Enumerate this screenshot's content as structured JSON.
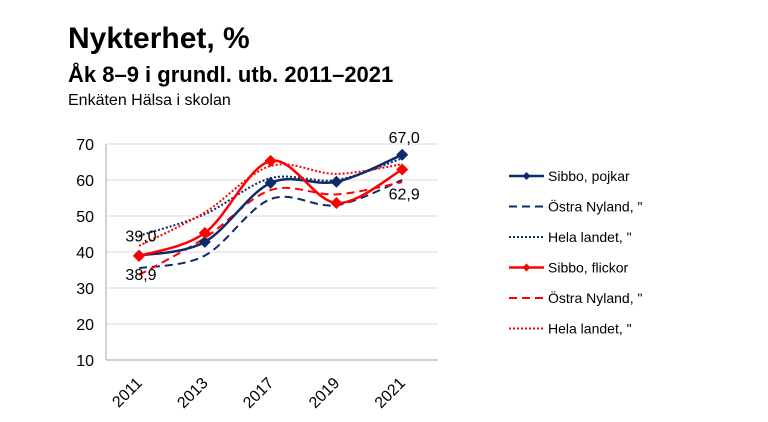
{
  "header": {
    "title": "Nykterhet, %",
    "subtitle": "Åk 8–9 i grundl. utb. 2011–2021",
    "source": "Enkäten Hälsa i skolan"
  },
  "chart_data": {
    "type": "line",
    "categories": [
      "2011",
      "2013",
      "2017",
      "2019",
      "2021"
    ],
    "ylim": [
      10,
      70
    ],
    "yticks": [
      "10",
      "20",
      "30",
      "40",
      "50",
      "60",
      "70"
    ],
    "grid": true,
    "legend_position": "right",
    "smoothed": true,
    "series": [
      {
        "name": "Sibbo, pojkar",
        "color": "#0d2a6b",
        "dash": "solid",
        "marker": "diamond",
        "values": [
          39.0,
          42.8,
          59.2,
          59.5,
          67.0
        ]
      },
      {
        "name": "Östra Nyland, \"",
        "color": "#0d2a6b",
        "dash": "dashed",
        "marker": "none",
        "values": [
          35.5,
          39.0,
          54.7,
          53.0,
          60.0
        ]
      },
      {
        "name": "Hela landet, \"",
        "color": "#0d2a6b",
        "dash": "dotted",
        "marker": "none",
        "values": [
          44.5,
          50.5,
          60.5,
          60.0,
          66.0
        ]
      },
      {
        "name": "Sibbo, flickor",
        "color": "#ff0000",
        "dash": "solid",
        "marker": "diamond",
        "values": [
          38.9,
          45.3,
          65.3,
          53.6,
          62.9
        ]
      },
      {
        "name": "Östra Nyland, \"",
        "color": "#ff0000",
        "dash": "dashed",
        "marker": "none",
        "values": [
          33.6,
          43.9,
          57.2,
          56.0,
          59.4
        ]
      },
      {
        "name": "Hela landet, \"",
        "color": "#ff0000",
        "dash": "dotted",
        "marker": "none",
        "values": [
          41.7,
          51.0,
          63.9,
          61.7,
          64.4
        ]
      }
    ],
    "data_labels": [
      {
        "text": "39,0",
        "series": 0,
        "category": "2011",
        "position": "above"
      },
      {
        "text": "38,9",
        "series": 3,
        "category": "2011",
        "position": "below"
      },
      {
        "text": "67,0",
        "series": 0,
        "category": "2021",
        "position": "above"
      },
      {
        "text": "62,9",
        "series": 3,
        "category": "2021",
        "position": "below"
      }
    ]
  }
}
